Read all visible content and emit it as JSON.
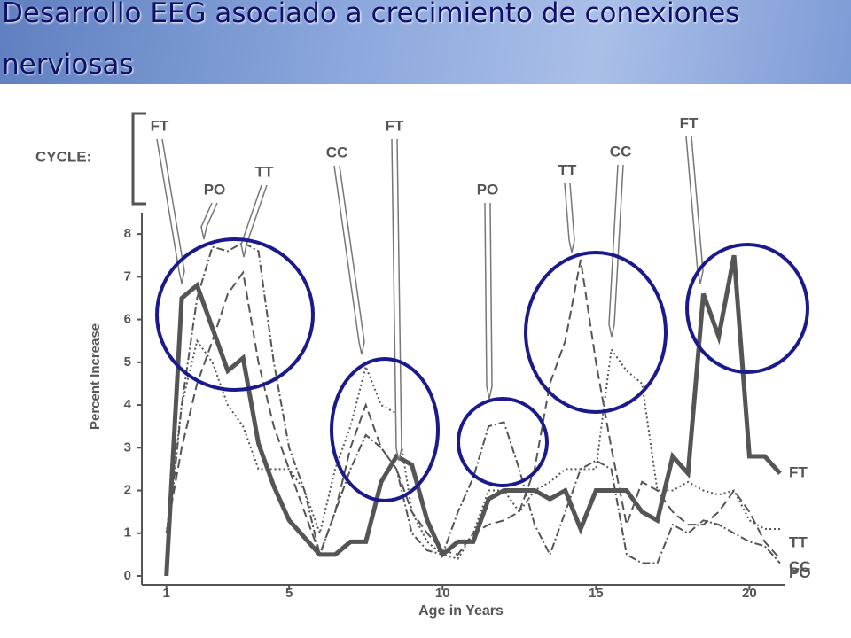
{
  "chart_data": {
    "type": "line",
    "title": "Desarrollo EEG asociado a crecimiento de conexiones nerviosas",
    "cycle_label": "CYCLE:",
    "annotations": [
      "FT",
      "PO",
      "TT",
      "CC",
      "FT",
      "PO",
      "TT",
      "CC",
      "FT"
    ],
    "x_label": "Age in Years",
    "y_label": "Percent Increase",
    "x": [
      1,
      1.5,
      2,
      2.5,
      3,
      3.5,
      4,
      4.5,
      5,
      5.5,
      6,
      6.5,
      7,
      7.5,
      8,
      8.5,
      9,
      9.5,
      10,
      10.5,
      11,
      11.5,
      12,
      12.5,
      13,
      13.5,
      14,
      14.5,
      15,
      15.5,
      16,
      16.5,
      17,
      17.5,
      18,
      18.5,
      19,
      19.5,
      20,
      20.5,
      21
    ],
    "series": [
      {
        "name": "FT",
        "color": "#555555",
        "line_style": "solid",
        "values": [
          0,
          6.5,
          6.8,
          5.8,
          4.8,
          5.1,
          3.1,
          2.1,
          1.3,
          0.9,
          0.5,
          0.5,
          0.8,
          0.8,
          2.2,
          2.8,
          2.6,
          1.3,
          0.5,
          0.8,
          0.8,
          1.8,
          2,
          2,
          2,
          1.8,
          2,
          1.1,
          2,
          2,
          2,
          1.5,
          1.3,
          2.8,
          2.4,
          6.6,
          5.6,
          7.5,
          2.8,
          2.8,
          2.4
        ]
      },
      {
        "name": "CC",
        "color": "#555555",
        "line_style": "dashed",
        "values": [
          1,
          3,
          4.5,
          5.5,
          6.6,
          7.1,
          5,
          3.5,
          2.5,
          1.5,
          0.5,
          1.5,
          3,
          4,
          3,
          2.5,
          1.5,
          1,
          0.6,
          0.5,
          1,
          1.2,
          1.3,
          1.5,
          2.5,
          4.5,
          5.5,
          7.4,
          5,
          3,
          1.2,
          2.2,
          2,
          1.5,
          1.2,
          1.2,
          1.5,
          2,
          1.5,
          0.8,
          0.4
        ]
      },
      {
        "name": "PO",
        "color": "#555555",
        "line_style": "dashdot",
        "values": [
          0.5,
          4,
          6.5,
          7.7,
          7.6,
          7.8,
          7.6,
          5,
          3,
          2,
          0.5,
          1.5,
          2.5,
          3.3,
          3,
          2.5,
          1,
          0.6,
          0.5,
          1.5,
          2.3,
          3.5,
          3.6,
          2.5,
          1.2,
          0.5,
          1.5,
          2.5,
          2.7,
          2.5,
          0.5,
          0.3,
          0.3,
          1.2,
          1,
          1.3,
          1.2,
          1,
          0.8,
          0.7,
          0.3
        ]
      },
      {
        "name": "TT",
        "color": "#555555",
        "line_style": "dotted",
        "values": [
          1,
          4,
          5.5,
          5,
          4,
          3.5,
          2.5,
          2.5,
          2.5,
          2,
          1,
          2.5,
          3.5,
          4.9,
          4,
          3.8,
          1.5,
          0.8,
          0.5,
          0.4,
          1,
          2,
          2,
          1.5,
          2,
          2.2,
          2.5,
          2.5,
          2.5,
          5.3,
          4.8,
          4.5,
          2,
          2,
          2.2,
          2,
          1.9,
          2,
          1.3,
          1.1,
          1.1
        ]
      }
    ],
    "xlim": [
      0.2,
      21
    ],
    "ylim": [
      0,
      8.5
    ],
    "xticks": [
      1,
      5,
      10,
      15,
      20
    ],
    "yticks": [
      0,
      1,
      2,
      3,
      4,
      5,
      6,
      7,
      8
    ]
  }
}
